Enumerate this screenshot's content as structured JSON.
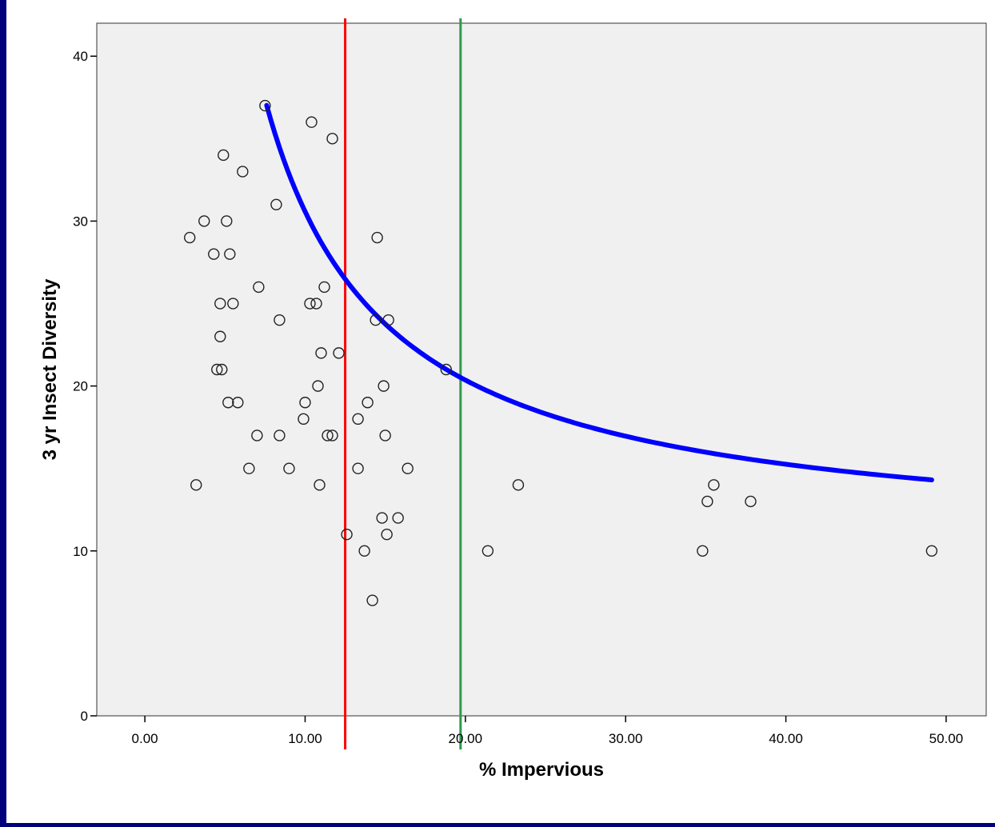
{
  "chart_data": {
    "type": "scatter",
    "title": "",
    "xlabel": "% Impervious",
    "ylabel": "3 yr Insect Diversity",
    "xlim": [
      -3,
      52.5
    ],
    "ylim": [
      0,
      42
    ],
    "x_ticks": [
      0,
      10,
      20,
      30,
      40,
      50
    ],
    "x_tick_labels": [
      "0.00",
      "10.00",
      "20.00",
      "30.00",
      "40.00",
      "50.00"
    ],
    "y_ticks": [
      0,
      10,
      20,
      30,
      40
    ],
    "y_tick_labels": [
      "0",
      "10",
      "20",
      "30",
      "40"
    ],
    "grid": false,
    "plot_background": "#f0f0f0",
    "points": [
      [
        7.5,
        37
      ],
      [
        10.4,
        36
      ],
      [
        11.7,
        35
      ],
      [
        4.9,
        34
      ],
      [
        6.1,
        33
      ],
      [
        8.2,
        31
      ],
      [
        3.7,
        30
      ],
      [
        5.1,
        30
      ],
      [
        2.8,
        29
      ],
      [
        14.5,
        29
      ],
      [
        4.3,
        28
      ],
      [
        5.3,
        28
      ],
      [
        7.1,
        26
      ],
      [
        11.2,
        26
      ],
      [
        4.7,
        25
      ],
      [
        5.5,
        25
      ],
      [
        10.3,
        25
      ],
      [
        10.7,
        25
      ],
      [
        8.4,
        24
      ],
      [
        14.4,
        24
      ],
      [
        15.2,
        24
      ],
      [
        4.7,
        23
      ],
      [
        11.0,
        22
      ],
      [
        12.1,
        22
      ],
      [
        4.5,
        21
      ],
      [
        4.8,
        21
      ],
      [
        18.8,
        21
      ],
      [
        10.8,
        20
      ],
      [
        14.9,
        20
      ],
      [
        5.2,
        19
      ],
      [
        5.8,
        19
      ],
      [
        10.0,
        19
      ],
      [
        13.9,
        19
      ],
      [
        9.9,
        18
      ],
      [
        13.3,
        18
      ],
      [
        7.0,
        17
      ],
      [
        8.4,
        17
      ],
      [
        11.4,
        17
      ],
      [
        11.7,
        17
      ],
      [
        15.0,
        17
      ],
      [
        6.5,
        15
      ],
      [
        9.0,
        15
      ],
      [
        13.3,
        15
      ],
      [
        16.4,
        15
      ],
      [
        3.2,
        14
      ],
      [
        10.9,
        14
      ],
      [
        23.3,
        14
      ],
      [
        35.5,
        14
      ],
      [
        15.8,
        12
      ],
      [
        14.8,
        12
      ],
      [
        35.1,
        13
      ],
      [
        37.8,
        13
      ],
      [
        12.6,
        11
      ],
      [
        15.1,
        11
      ],
      [
        13.7,
        10
      ],
      [
        21.4,
        10
      ],
      [
        34.8,
        10
      ],
      [
        49.1,
        10
      ],
      [
        14.2,
        7
      ]
    ],
    "fit_curve": {
      "color": "#0000ff",
      "x_range": [
        7.6,
        49.1
      ],
      "b0": 10.15,
      "b1": 204.2
    },
    "reference_lines": [
      {
        "x": 12.5,
        "color": "#ff0000"
      },
      {
        "x": 19.7,
        "color": "#2e9a4e"
      }
    ]
  }
}
